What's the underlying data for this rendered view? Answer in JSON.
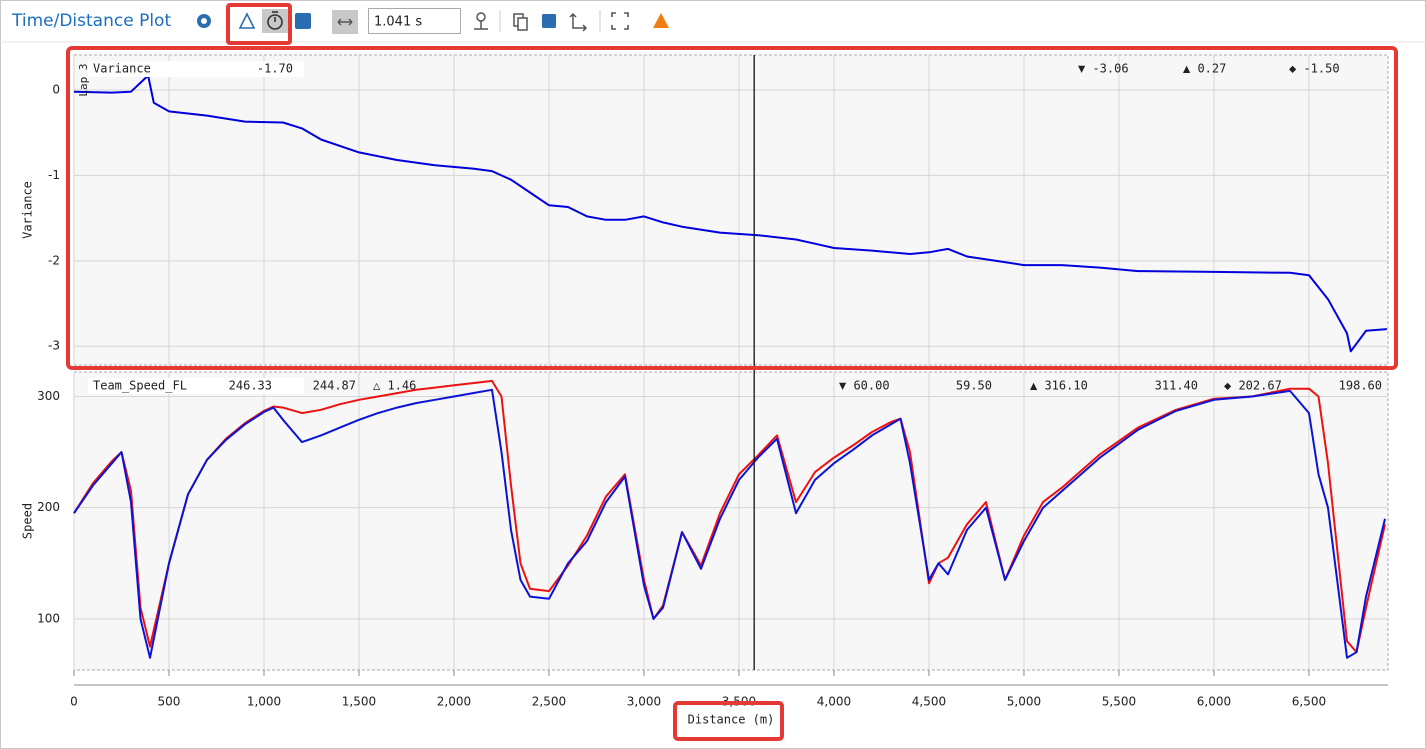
{
  "toolbar": {
    "title": "Time/Distance Plot",
    "time_offset": "1.041 s"
  },
  "cursor": {
    "x": 3580
  },
  "chart_data": [
    {
      "type": "line",
      "ylabel": "Variance",
      "lap": "Lap 3",
      "x": [
        0,
        200,
        300,
        390,
        420,
        500,
        700,
        900,
        1100,
        1200,
        1300,
        1500,
        1700,
        1900,
        2100,
        2200,
        2300,
        2400,
        2500,
        2600,
        2700,
        2800,
        2900,
        3000,
        3100,
        3200,
        3400,
        3600,
        3800,
        3900,
        4000,
        4200,
        4400,
        4500,
        4600,
        4700,
        4850,
        5000,
        5200,
        5400,
        5600,
        6000,
        6400,
        6500,
        6600,
        6700,
        6720,
        6800,
        6910
      ],
      "series": [
        {
          "name": "Variance",
          "color": "#0000dd",
          "values": [
            -0.02,
            -0.03,
            -0.02,
            0.17,
            -0.15,
            -0.25,
            -0.3,
            -0.37,
            -0.38,
            -0.45,
            -0.58,
            -0.73,
            -0.82,
            -0.88,
            -0.92,
            -0.95,
            -1.05,
            -1.2,
            -1.35,
            -1.37,
            -1.48,
            -1.52,
            -1.52,
            -1.48,
            -1.55,
            -1.6,
            -1.67,
            -1.7,
            -1.75,
            -1.8,
            -1.85,
            -1.88,
            -1.92,
            -1.9,
            -1.86,
            -1.95,
            -2.0,
            -2.05,
            -2.05,
            -2.08,
            -2.12,
            -2.13,
            -2.14,
            -2.17,
            -2.45,
            -2.85,
            -3.06,
            -2.82,
            -2.8
          ],
          "readout": {
            "value": "-1.70",
            "min": "▼ -3.06",
            "max": "▲ 0.27",
            "avg": "◆ -1.50"
          }
        }
      ],
      "ylim": [
        -3.22,
        0.41
      ],
      "yticks": [
        -3,
        -2,
        -1,
        0
      ],
      "grid": true
    },
    {
      "type": "line",
      "ylabel": "Speed",
      "xlabel": "Distance (m)",
      "delta": "△ 1.46",
      "x": [
        0,
        100,
        200,
        250,
        300,
        350,
        400,
        500,
        600,
        700,
        800,
        900,
        1000,
        1050,
        1100,
        1200,
        1300,
        1400,
        1500,
        1600,
        1700,
        1800,
        1900,
        2000,
        2100,
        2200,
        2250,
        2300,
        2350,
        2400,
        2500,
        2600,
        2700,
        2800,
        2900,
        3000,
        3050,
        3100,
        3200,
        3300,
        3400,
        3500,
        3600,
        3700,
        3800,
        3900,
        4000,
        4100,
        4200,
        4300,
        4350,
        4400,
        4500,
        4550,
        4600,
        4700,
        4800,
        4900,
        5000,
        5100,
        5200,
        5400,
        5600,
        5800,
        6000,
        6200,
        6400,
        6500,
        6550,
        6600,
        6700,
        6750,
        6800,
        6900
      ],
      "series": [
        {
          "name": "Team_Speed_FL",
          "color": "#ee1111",
          "values": [
            195,
            222,
            242,
            250,
            215,
            110,
            75,
            150,
            212,
            243,
            262,
            276,
            287,
            291,
            290,
            285,
            288,
            293,
            297,
            300,
            303,
            306,
            308,
            310,
            312,
            314,
            300,
            220,
            150,
            127,
            125,
            148,
            175,
            210,
            230,
            135,
            100,
            112,
            178,
            148,
            195,
            230,
            247,
            265,
            205,
            232,
            245,
            256,
            268,
            277,
            280,
            250,
            132,
            150,
            155,
            185,
            205,
            135,
            175,
            205,
            218,
            248,
            272,
            288,
            298,
            300,
            307,
            307,
            300,
            240,
            80,
            70,
            110,
            185
          ],
          "readout": {
            "value": "246.33",
            "min": "▼ 60.00",
            "max": "▲ 316.10",
            "avg": "◆ 202.67"
          }
        },
        {
          "color": "#0a14d6",
          "values": [
            195,
            220,
            240,
            250,
            205,
            100,
            65,
            150,
            212,
            243,
            261,
            275,
            286,
            290,
            279,
            259,
            265,
            272,
            279,
            285,
            290,
            294,
            297,
            300,
            303,
            306,
            250,
            180,
            135,
            120,
            118,
            150,
            170,
            205,
            228,
            130,
            100,
            110,
            178,
            145,
            190,
            225,
            245,
            262,
            195,
            225,
            240,
            252,
            265,
            275,
            280,
            240,
            135,
            150,
            140,
            180,
            200,
            135,
            170,
            200,
            215,
            245,
            270,
            287,
            297,
            300,
            305,
            285,
            230,
            200,
            65,
            70,
            120,
            190
          ],
          "readout": {
            "value": "244.87",
            "min": "59.50",
            "max": "311.40",
            "avg": "198.60"
          }
        }
      ],
      "xlim": [
        0,
        6916
      ],
      "xticks": [
        0,
        500,
        {
          "value": 1000,
          "label": "1,000"
        },
        {
          "value": 1500,
          "label": "1,500"
        },
        {
          "value": 2000,
          "label": "2,000"
        },
        {
          "value": 2500,
          "label": "2,500"
        },
        {
          "value": 3000,
          "label": "3,000"
        },
        {
          "value": 3500,
          "label": "3,500"
        },
        {
          "value": 4000,
          "label": "4,000"
        },
        {
          "value": 4500,
          "label": "4,500"
        },
        {
          "value": 5000,
          "label": "5,000"
        },
        {
          "value": 5500,
          "label": "5,500"
        },
        {
          "value": 6000,
          "label": "6,000"
        },
        {
          "value": 6500,
          "label": "6,500"
        }
      ],
      "ylim": [
        54,
        322
      ],
      "yticks": [
        100,
        200,
        300
      ],
      "grid": true
    }
  ]
}
